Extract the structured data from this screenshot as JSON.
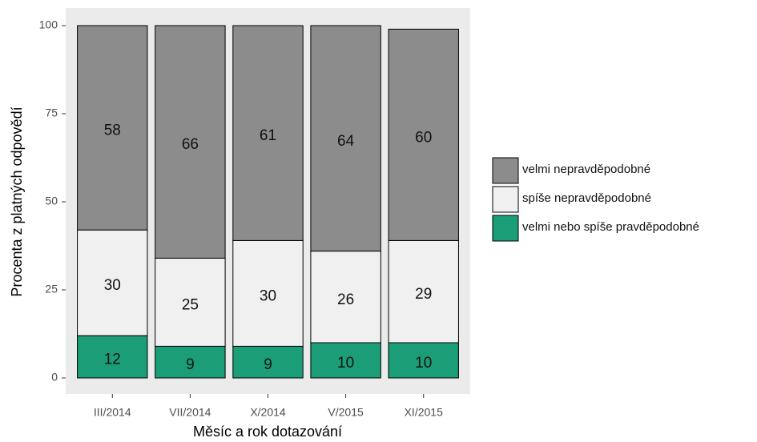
{
  "chart_data": {
    "type": "stacked_bar",
    "x_label": "Měsíc a rok dotazování",
    "y_label": "Procenta z platných odpovědí",
    "categories": [
      "III/2014",
      "VII/2014",
      "X/2014",
      "V/2015",
      "XI/2015"
    ],
    "series": [
      {
        "name": "velmi nepravděpodobné",
        "color": "#8c8c8c",
        "values": [
          58,
          66,
          61,
          64,
          60
        ]
      },
      {
        "name": "spíše nepravděpodobné",
        "color": "#f0f0f0",
        "values": [
          30,
          25,
          30,
          26,
          29
        ]
      },
      {
        "name": "velmi nebo spíše pravděpodobné",
        "color": "#1b9e77",
        "values": [
          12,
          9,
          9,
          10,
          10
        ]
      }
    ],
    "ylim": [
      0,
      100
    ],
    "yticks": [
      0,
      25,
      50,
      75,
      100
    ],
    "grid": false,
    "legend": "right"
  }
}
